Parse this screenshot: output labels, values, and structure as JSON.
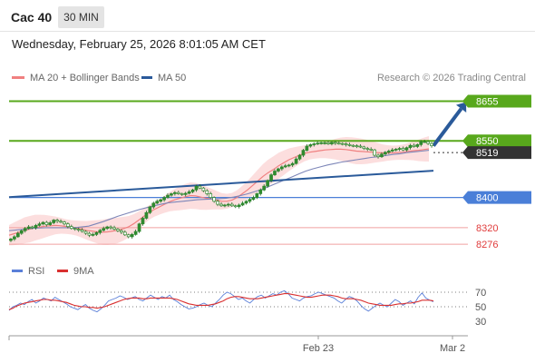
{
  "header": {
    "instrument": "Cac 40",
    "timeframe": "30 MIN",
    "datetime": "Wednesday, February 25, 2026 8:01:05 AM CET"
  },
  "legend": {
    "ma20_label": "MA 20 + Bollinger Bands",
    "ma50_label": "MA 50",
    "credit": "Research © 2026 Trading Central"
  },
  "rsi_legend": {
    "rsi_label": "RSI",
    "ma_label": "9MA"
  },
  "colors": {
    "candle": "#2f8a2f",
    "band_fill": "#fbd3d3",
    "ma20": "#f08080",
    "ma50": "#7d86b8",
    "trendline": "#2a5a9a",
    "green_level": "#58a81c",
    "blue_level": "#4a7fd8",
    "red_level": "#f0a0a0",
    "dark_level": "#333333",
    "rsi": "#5a7fd8",
    "rsi_ma": "#d93030"
  },
  "chart_data": [
    {
      "type": "candlestick",
      "ylim": [
        8250,
        8690
      ],
      "x_ticks": [
        "Feb 23",
        "Mar 2"
      ],
      "levels": [
        {
          "value": 8655,
          "label": "8655",
          "style": "green"
        },
        {
          "value": 8550,
          "label": "8550",
          "style": "green"
        },
        {
          "value": 8519,
          "label": "8519",
          "style": "dark"
        },
        {
          "value": 8400,
          "label": "8400",
          "style": "blue"
        },
        {
          "value": 8320,
          "label": "8320",
          "style": "red"
        },
        {
          "value": 8276,
          "label": "8276",
          "style": "red"
        }
      ],
      "trendline": {
        "from": 8401,
        "to": 8471
      },
      "forecast_target": 8655,
      "series": [
        {
          "name": "Close",
          "values": [
            8290,
            8296,
            8305,
            8312,
            8318,
            8322,
            8320,
            8326,
            8330,
            8334,
            8328,
            8333,
            8340,
            8337,
            8335,
            8330,
            8323,
            8318,
            8316,
            8314,
            8310,
            8305,
            8300,
            8302,
            8307,
            8313,
            8318,
            8322,
            8320,
            8316,
            8312,
            8308,
            8301,
            8296,
            8302,
            8310,
            8330,
            8345,
            8360,
            8375,
            8385,
            8390,
            8394,
            8400,
            8406,
            8410,
            8413,
            8410,
            8408,
            8411,
            8415,
            8420,
            8430,
            8425,
            8418,
            8410,
            8400,
            8390,
            8382,
            8378,
            8380,
            8382,
            8378,
            8376,
            8380,
            8385,
            8390,
            8395,
            8400,
            8410,
            8420,
            8430,
            8445,
            8460,
            8470,
            8476,
            8481,
            8484,
            8486,
            8490,
            8502,
            8512,
            8525,
            8536,
            8540,
            8542,
            8544,
            8545,
            8545,
            8542,
            8546,
            8544,
            8543,
            8542,
            8540,
            8538,
            8537,
            8536,
            8534,
            8530,
            8528,
            8526,
            8512,
            8508,
            8515,
            8520,
            8523,
            8526,
            8528,
            8530,
            8526,
            8532,
            8538,
            8535,
            8540,
            8548,
            8548,
            8543,
            8537
          ]
        },
        {
          "name": "MA 20",
          "values": [
            8300,
            8304,
            8308,
            8313,
            8316,
            8320,
            8322,
            8324,
            8325,
            8326,
            8325,
            8323,
            8321,
            8319,
            8316,
            8313,
            8311,
            8309,
            8308,
            8309,
            8311,
            8313,
            8317,
            8322,
            8330,
            8340,
            8350,
            8360,
            8368,
            8375,
            8382,
            8389,
            8394,
            8398,
            8402,
            8405,
            8404,
            8401,
            8398,
            8396,
            8393,
            8390,
            8390,
            8393,
            8400,
            8410,
            8420,
            8432,
            8444,
            8456,
            8466,
            8474,
            8484,
            8492,
            8500,
            8506,
            8512,
            8517,
            8520,
            8522,
            8524,
            8526,
            8527,
            8528,
            8528,
            8527,
            8525,
            8523,
            8522,
            8521,
            8520,
            8519,
            8518,
            8518,
            8518,
            8519,
            8520,
            8522,
            8524,
            8525,
            8527,
            8529
          ]
        },
        {
          "name": "MA 50",
          "values": [
            8312,
            8314,
            8316,
            8318,
            8319,
            8320,
            8320,
            8320,
            8320,
            8320,
            8322,
            8324,
            8330,
            8336,
            8343,
            8350,
            8356,
            8362,
            8368,
            8373,
            8378,
            8382,
            8386,
            8388,
            8390,
            8392,
            8394,
            8395,
            8396,
            8397,
            8398,
            8401,
            8405,
            8410,
            8416,
            8422,
            8430,
            8438,
            8446,
            8454,
            8462,
            8470,
            8476,
            8481,
            8486,
            8490,
            8494,
            8497,
            8500,
            8503,
            8506,
            8508,
            8511,
            8514,
            8516,
            8519,
            8521,
            8523,
            8525
          ]
        }
      ]
    },
    {
      "type": "line",
      "ylim": [
        20,
        85
      ],
      "yticks": [
        70,
        50,
        30
      ],
      "series": [
        {
          "name": "RSI",
          "values": [
            45,
            50,
            52,
            55,
            53,
            57,
            60,
            55,
            58,
            62,
            60,
            58,
            63,
            60,
            57,
            54,
            50,
            48,
            46,
            50,
            53,
            48,
            45,
            43,
            47,
            52,
            58,
            60,
            62,
            65,
            63,
            60,
            62,
            64,
            60,
            58,
            62,
            66,
            63,
            60,
            64,
            62,
            66,
            60,
            57,
            53,
            50,
            47,
            48,
            50,
            53,
            55,
            52,
            50,
            55,
            60,
            66,
            70,
            68,
            64,
            60,
            62,
            58,
            55,
            60,
            64,
            66,
            62,
            65,
            68,
            66,
            70,
            72,
            68,
            62,
            60,
            58,
            62,
            64,
            65,
            68,
            70,
            68,
            66,
            64,
            62,
            58,
            55,
            60,
            64,
            62,
            58,
            52,
            47,
            44,
            48,
            52,
            55,
            52,
            50,
            55,
            60,
            57,
            52,
            55,
            58,
            54,
            63,
            69,
            62,
            59,
            57
          ]
        },
        {
          "name": "9MA",
          "values": [
            46,
            48,
            51,
            53,
            55,
            56,
            57,
            58,
            59,
            60,
            60,
            59,
            59,
            58,
            57,
            56,
            54,
            52,
            51,
            50,
            50,
            49,
            49,
            48,
            49,
            50,
            52,
            54,
            56,
            58,
            60,
            61,
            62,
            62,
            62,
            61,
            61,
            62,
            62,
            62,
            62,
            62,
            62,
            61,
            60,
            58,
            56,
            54,
            53,
            52,
            52,
            52,
            52,
            53,
            54,
            56,
            58,
            61,
            63,
            64,
            64,
            63,
            62,
            61,
            61,
            61,
            62,
            63,
            64,
            65,
            66,
            67,
            68,
            68,
            67,
            66,
            65,
            64,
            63,
            63,
            64,
            65,
            66,
            66,
            66,
            65,
            64,
            62,
            61,
            61,
            61,
            60,
            59,
            57,
            55,
            54,
            53,
            52,
            52,
            52,
            52,
            53,
            54,
            54,
            55,
            55,
            56,
            57,
            59,
            59,
            59,
            58
          ]
        }
      ]
    }
  ]
}
